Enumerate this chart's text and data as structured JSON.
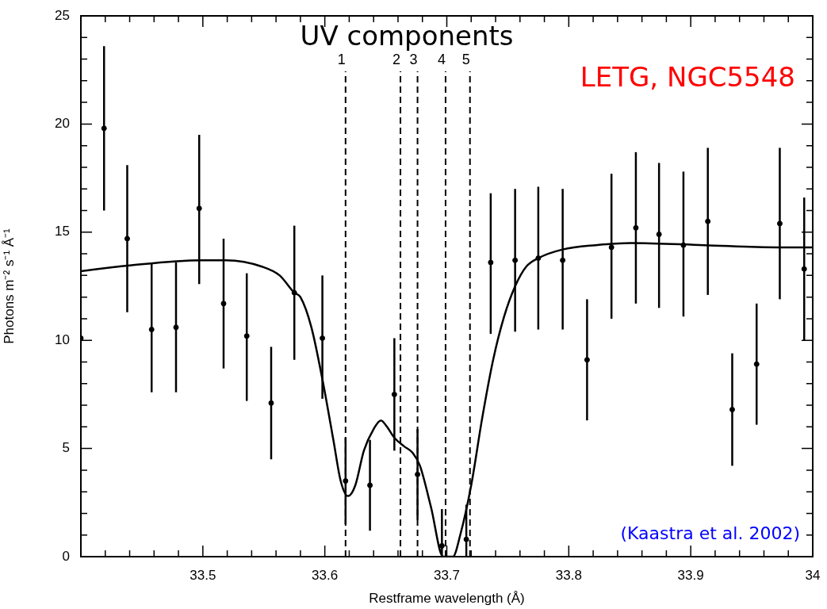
{
  "chart_data": {
    "type": "scatter",
    "title": "UV components",
    "xlabel": "Restframe wavelength (Å)",
    "ylabel": "Photons m⁻² s⁻¹ Å⁻¹",
    "annotations": [
      "LETG, NGC5548",
      "(Kaastra et al. 2002)",
      "1",
      "2",
      "3",
      "4",
      "5"
    ],
    "xlim": [
      33.4,
      34
    ],
    "xticks": [
      {
        "value": 33.42,
        "label": null
      },
      {
        "value": 33.44,
        "label": null
      },
      {
        "value": 33.46,
        "label": null
      },
      {
        "value": 33.48,
        "label": null
      },
      33.5,
      {
        "value": 33.52,
        "label": null
      },
      {
        "value": 33.54,
        "label": null
      },
      {
        "value": 33.56,
        "label": null
      },
      {
        "value": 33.58,
        "label": null
      },
      33.6,
      {
        "value": 33.62,
        "label": null
      },
      {
        "value": 33.64,
        "label": null
      },
      {
        "value": 33.66,
        "label": null
      },
      {
        "value": 33.68,
        "label": null
      },
      33.7,
      {
        "value": 33.72,
        "label": null
      },
      {
        "value": 33.74,
        "label": null
      },
      {
        "value": 33.76,
        "label": null
      },
      {
        "value": 33.78,
        "label": null
      },
      33.8,
      {
        "value": 33.82,
        "label": null
      },
      {
        "value": 33.84,
        "label": null
      },
      {
        "value": 33.86,
        "label": null
      },
      {
        "value": 33.88,
        "label": null
      },
      33.9,
      {
        "value": 33.92,
        "label": null
      },
      {
        "value": 33.94,
        "label": null
      },
      {
        "value": 33.96,
        "label": null
      },
      {
        "value": 33.98,
        "label": null
      },
      34
    ],
    "ylim": [
      0,
      25
    ],
    "yticks": [
      0,
      {
        "value": 1,
        "label": null
      },
      {
        "value": 2,
        "label": null
      },
      {
        "value": 3,
        "label": null
      },
      {
        "value": 4,
        "label": null
      },
      5,
      {
        "value": 6,
        "label": null
      },
      {
        "value": 7,
        "label": null
      },
      {
        "value": 8,
        "label": null
      },
      {
        "value": 9,
        "label": null
      },
      10,
      {
        "value": 11,
        "label": null
      },
      {
        "value": 12,
        "label": null
      },
      {
        "value": 13,
        "label": null
      },
      {
        "value": 14,
        "label": null
      },
      15,
      {
        "value": 16,
        "label": null
      },
      {
        "value": 17,
        "label": null
      },
      {
        "value": 18,
        "label": null
      },
      {
        "value": 19,
        "label": null
      },
      20,
      {
        "value": 21,
        "label": null
      },
      {
        "value": 22,
        "label": null
      },
      {
        "value": 23,
        "label": null
      },
      {
        "value": 24,
        "label": null
      },
      25
    ],
    "ref_lines": [
      {
        "axis": "x",
        "value": 33.617,
        "color": "#000000",
        "line_style": "dashed"
      },
      {
        "axis": "x",
        "value": 33.662,
        "color": "#000000",
        "line_style": "dashed"
      },
      {
        "axis": "x",
        "value": 33.676,
        "color": "#000000",
        "line_style": "dashed"
      },
      {
        "axis": "x",
        "value": 33.699,
        "color": "#000000",
        "line_style": "dashed"
      },
      {
        "axis": "x",
        "value": 33.719,
        "color": "#000000",
        "line_style": "dashed"
      }
    ],
    "legend": false,
    "series": [
      {
        "type": "scatter",
        "color": "#000000",
        "marker": "circle",
        "x": [
          33.4,
          33.419,
          33.438,
          33.458,
          33.478,
          33.497,
          33.517,
          33.536,
          33.556,
          33.575,
          33.598,
          33.617,
          33.637,
          33.657,
          33.676,
          33.696,
          33.716,
          33.736,
          33.756,
          33.775,
          33.795,
          33.815,
          33.835,
          33.855,
          33.874,
          33.894,
          33.914,
          33.934,
          33.954,
          33.973,
          33.993
        ],
        "values": [
          10.1,
          19.8,
          14.7,
          10.5,
          10.6,
          16.1,
          11.7,
          10.2,
          7.1,
          12.2,
          10.1,
          3.5,
          3.3,
          7.5,
          3.8,
          0.5,
          0.8,
          13.6,
          13.7,
          13.8,
          13.7,
          9.1,
          14.3,
          15.2,
          14.9,
          14.4,
          15.5,
          6.8,
          8.9,
          15.4,
          13.3
        ],
        "errors": [
          null,
          [
            16.0,
            23.6
          ],
          [
            11.3,
            18.1
          ],
          [
            7.6,
            13.6
          ],
          [
            7.6,
            13.6
          ],
          [
            12.6,
            19.5
          ],
          [
            8.7,
            14.7
          ],
          [
            7.2,
            13.1
          ],
          [
            4.5,
            9.7
          ],
          [
            9.1,
            15.3
          ],
          [
            7.3,
            13.0
          ],
          [
            1.5,
            5.5
          ],
          [
            1.2,
            5.4
          ],
          [
            4.9,
            10.1
          ],
          [
            1.7,
            5.9
          ],
          [
            0,
            2.2
          ],
          [
            0,
            2.4
          ],
          [
            10.3,
            16.8
          ],
          [
            10.4,
            17.0
          ],
          [
            10.5,
            17.1
          ],
          [
            10.5,
            17.0
          ],
          [
            6.3,
            11.9
          ],
          [
            11.0,
            17.7
          ],
          [
            11.7,
            18.7
          ],
          [
            11.5,
            18.2
          ],
          [
            11.1,
            17.8
          ],
          [
            12.1,
            18.9
          ],
          [
            4.2,
            9.4
          ],
          [
            6.1,
            11.7
          ],
          [
            11.9,
            18.9
          ],
          [
            10.0,
            16.6
          ]
        ]
      },
      {
        "type": "line",
        "color": "#000000",
        "marker": "none",
        "line_style": "solid",
        "x": [
          33.4,
          33.438,
          33.499,
          33.519,
          33.549,
          33.563,
          33.575,
          33.58,
          33.589,
          33.598,
          33.607,
          33.613,
          33.619,
          33.625,
          33.632,
          33.64,
          33.646,
          33.651,
          33.657,
          33.665,
          33.672,
          33.678,
          33.687,
          33.697,
          33.705,
          33.711,
          33.72,
          33.729,
          33.738,
          33.747,
          33.756,
          33.765,
          33.775,
          33.795,
          33.822,
          33.851,
          33.911,
          33.971,
          34.0
        ],
        "values": [
          13.2,
          13.45,
          13.7,
          13.7,
          13.4,
          13.0,
          12.2,
          12.0,
          10.6,
          8.2,
          5.4,
          3.5,
          2.8,
          3.3,
          4.9,
          5.9,
          6.3,
          6.0,
          5.5,
          5.1,
          4.8,
          4.2,
          2.3,
          0,
          0,
          1.0,
          3.3,
          6.4,
          9.1,
          11.1,
          12.5,
          13.4,
          13.8,
          14.2,
          14.4,
          14.5,
          14.4,
          14.3,
          14.3
        ]
      }
    ]
  }
}
